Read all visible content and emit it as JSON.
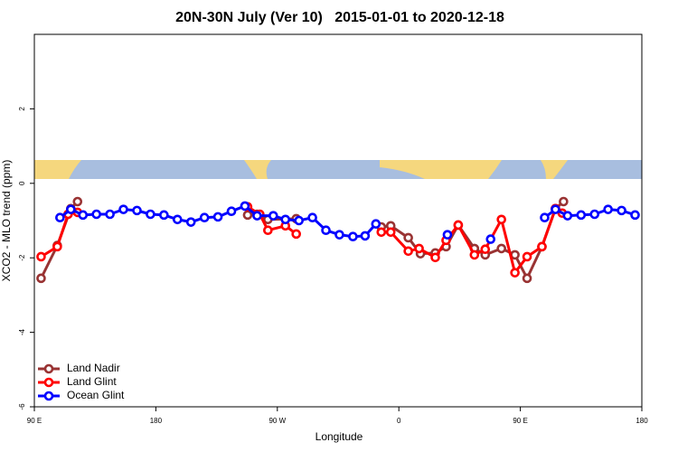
{
  "chart_data": {
    "type": "line",
    "title": "20N-30N July (Ver 10)   2015-01-01 to 2020-12-18",
    "xlabel": "Longitude",
    "ylabel": "XCO2 - MLO trend (ppm)",
    "xlim": [
      90,
      540
    ],
    "ylim": [
      -6,
      4
    ],
    "xticks": [
      {
        "value": 90,
        "label": "90 E"
      },
      180,
      {
        "value": 270,
        "label": "90 W"
      },
      {
        "value": 360,
        "label": "0"
      },
      {
        "value": 450,
        "label": "90 E"
      },
      180
    ],
    "yticks": [
      -6,
      -4,
      -2,
      0,
      2
    ],
    "legend": "bottom-left",
    "series": [
      {
        "name": "Land Nadir",
        "color": "#993333",
        "x": [
          95,
          107,
          117,
          122,
          null,
          248,
          255,
          263,
          284,
          null,
          347,
          354,
          367,
          376,
          387,
          395,
          404,
          416,
          424,
          436,
          446,
          455,
          466,
          476,
          482
        ],
        "values": [
          -2.55,
          -1.67,
          -0.68,
          -0.49,
          null,
          -0.85,
          -0.83,
          -0.97,
          -0.95,
          null,
          -1.17,
          -1.14,
          -1.46,
          -1.89,
          -1.87,
          -1.7,
          -1.12,
          -1.75,
          -1.92,
          -1.75,
          -1.92,
          -2.55,
          -1.7,
          -0.68,
          -0.49
        ]
      },
      {
        "name": "Land Glint",
        "color": "#ff0000",
        "x": [
          95,
          107,
          115,
          122,
          null,
          248,
          257,
          263,
          276,
          284,
          null,
          347,
          354,
          367,
          375,
          387,
          395,
          404,
          416,
          424,
          436,
          446,
          455,
          466,
          476,
          481
        ],
        "values": [
          -1.97,
          -1.7,
          -0.83,
          -0.78,
          null,
          -0.63,
          -0.83,
          -1.26,
          -1.14,
          -1.36,
          null,
          -1.31,
          -1.31,
          -1.82,
          -1.75,
          -1.99,
          -1.53,
          -1.12,
          -1.92,
          -1.77,
          -0.97,
          -2.4,
          -1.97,
          -1.7,
          -0.68,
          -0.8
        ]
      },
      {
        "name": "Ocean Glint",
        "color": "#0000ff",
        "x": [
          109,
          117,
          126,
          136,
          146,
          156,
          166,
          176,
          186,
          196,
          206,
          216,
          226,
          236,
          246,
          255,
          267,
          276,
          286,
          296,
          306,
          316,
          326,
          335,
          343,
          null,
          396,
          null,
          428,
          null,
          468,
          476,
          485,
          495,
          505,
          515,
          525,
          535
        ],
        "values": [
          -0.92,
          -0.7,
          -0.85,
          -0.83,
          -0.83,
          -0.7,
          -0.73,
          -0.83,
          -0.85,
          -0.97,
          -1.04,
          -0.92,
          -0.9,
          -0.75,
          -0.61,
          -0.87,
          -0.87,
          -0.97,
          -1.0,
          -0.92,
          -1.26,
          -1.38,
          -1.43,
          -1.41,
          -1.09,
          null,
          -1.38,
          null,
          -1.5,
          null,
          -0.92,
          -0.7,
          -0.87,
          -0.85,
          -0.83,
          -0.7,
          -0.73,
          -0.85
        ]
      }
    ]
  }
}
